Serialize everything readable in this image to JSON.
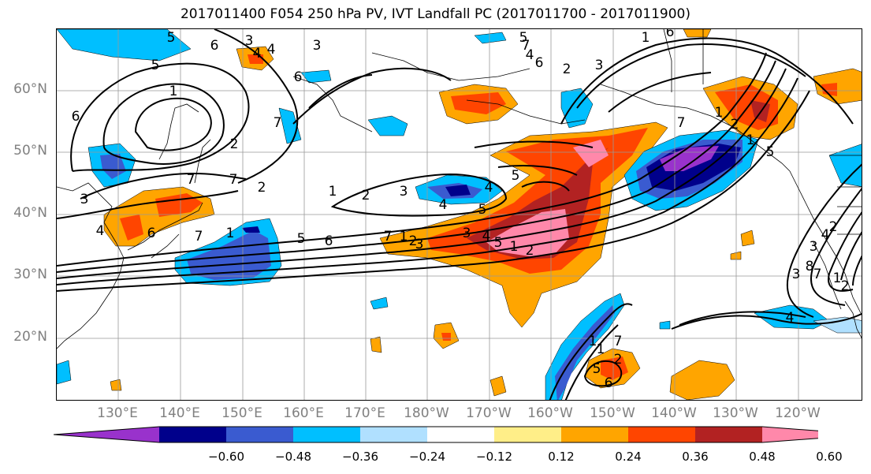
{
  "title": "2017011400 F054 250 hPa PV, IVT Landfall PC (2017011700 - 2017011900)",
  "lat_labels": [
    "60°N",
    "50°N",
    "40°N",
    "30°N",
    "20°N"
  ],
  "lon_labels": [
    "130°E",
    "140°E",
    "150°E",
    "160°E",
    "170°E",
    "180°W",
    "170°W",
    "160°W",
    "150°W",
    "140°W",
    "130°W",
    "120°W"
  ],
  "colorbar": {
    "colors": [
      "#9932cc",
      "#00008b",
      "#3a5bd0",
      "#00bfff",
      "#b0e0ff",
      "#ffffff",
      "#ffee88",
      "#ffa500",
      "#ff4500",
      "#b22222",
      "#ff88aa"
    ],
    "tick_labels": [
      "−0.60",
      "−0.48",
      "−0.36",
      "−0.24",
      "−0.12",
      "0.12",
      "0.24",
      "0.36",
      "0.48",
      "0.60"
    ]
  },
  "contour_labels": [
    "3",
    "4",
    "5",
    "6",
    "1",
    "2",
    "3",
    "4",
    "5",
    "6",
    "7",
    "1",
    "2",
    "3",
    "4",
    "5",
    "6",
    "7",
    "1",
    "2",
    "3",
    "4",
    "5",
    "6",
    "7",
    "1",
    "2",
    "3",
    "4",
    "5",
    "6",
    "7",
    "5",
    "7",
    "4",
    "6",
    "2",
    "3",
    "1",
    "6",
    "7",
    "1",
    "2",
    "1",
    "5",
    "3",
    "4",
    "2",
    "8",
    "7",
    "1",
    "2",
    "3",
    "4",
    "1",
    "5",
    "6",
    "7",
    "1",
    "2",
    "3",
    "4",
    "5",
    "1",
    "2",
    "7"
  ],
  "map_colors": {
    "land_line": "#000000",
    "grid": "#999999",
    "contour": "#000000"
  }
}
